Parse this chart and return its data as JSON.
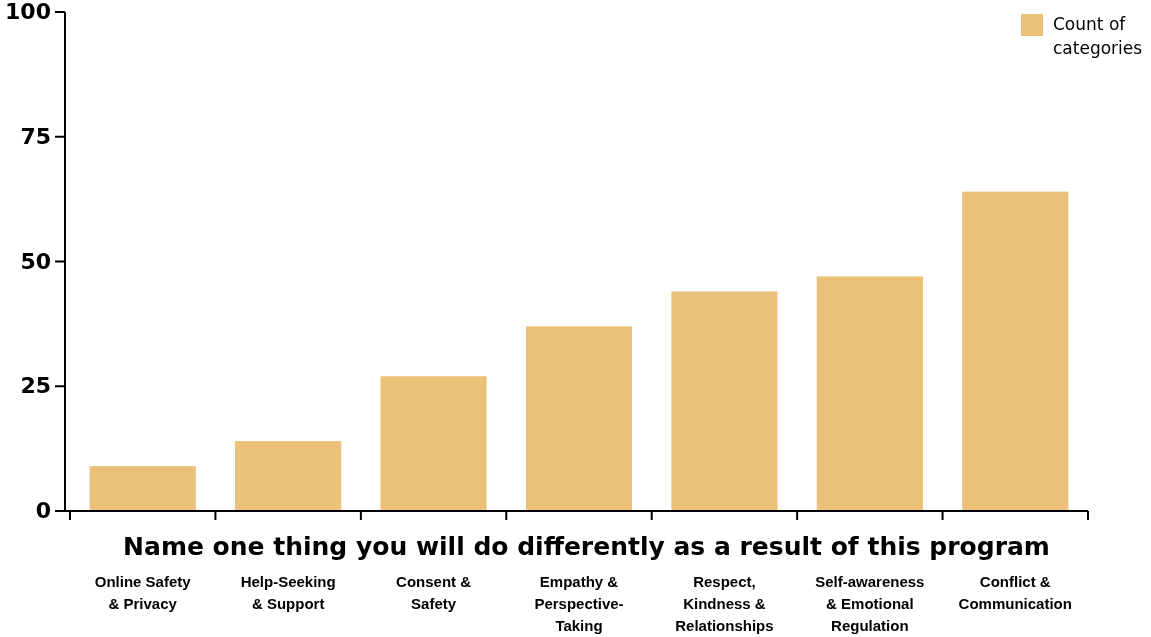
{
  "chart_data": {
    "type": "bar",
    "xlabel": "Name one thing you will do differently as a result of this program",
    "categories": [
      "Online Safety & Privacy",
      "Help-Seeking & Support",
      "Consent & Safety",
      "Empathy & Perspective-Taking",
      "Respect, Kindness & Relationships",
      "Self-awareness & Emotional Regulation",
      "Conflict & Communication"
    ],
    "series": [
      {
        "name": "Count of categories",
        "color": "#ebc17a",
        "values": [
          9,
          14,
          27,
          37,
          44,
          47,
          64
        ]
      }
    ],
    "ylim": [
      0,
      100
    ],
    "yticks": [
      0,
      25,
      50,
      75,
      100
    ],
    "grid": false,
    "legend": "top right"
  }
}
